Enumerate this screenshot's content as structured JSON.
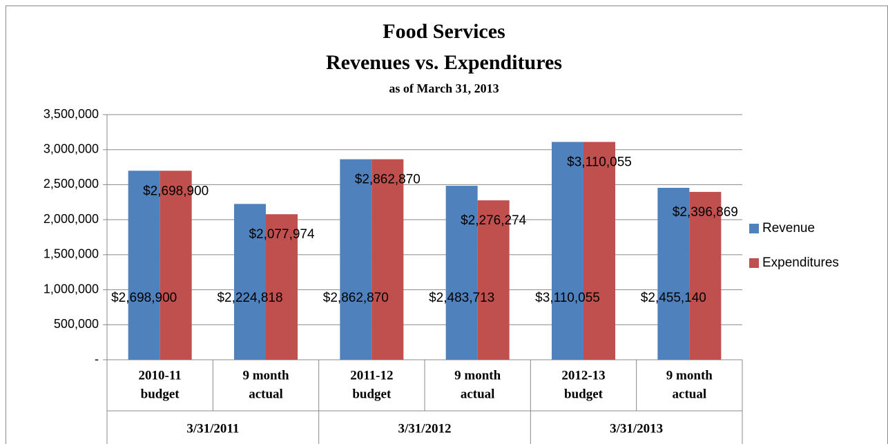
{
  "chart_data": {
    "type": "bar",
    "title": [
      "Food Services",
      "Revenues vs. Expenditures"
    ],
    "subtitle": "as of March 31, 2013",
    "categories": [
      [
        "2010-11",
        "budget"
      ],
      [
        "9 month",
        "actual"
      ],
      [
        "2011-12",
        "budget"
      ],
      [
        "9 month",
        "actual"
      ],
      [
        "2012-13",
        "budget"
      ],
      [
        "9 month",
        "actual"
      ]
    ],
    "groups": [
      "3/31/2011",
      "3/31/2012",
      "3/31/2013"
    ],
    "series": [
      {
        "name": "Revenue",
        "color": "#4f81bd",
        "values": [
          2698900,
          2224818,
          2862870,
          2483713,
          3110055,
          2455140
        ],
        "value_labels": [
          "$2,698,900",
          "$2,224,818",
          "$2,862,870",
          "$2,483,713",
          "$3,110,055",
          "$2,455,140"
        ]
      },
      {
        "name": "Expenditures",
        "color": "#c0504d",
        "values": [
          2698900,
          2077974,
          2862870,
          2276274,
          3110055,
          2396869
        ],
        "value_labels": [
          "$2,698,900",
          "$2,077,974",
          "$2,862,870",
          "$2,276,274",
          "$3,110,055",
          "$2,396,869"
        ]
      }
    ],
    "ylim": [
      0,
      3500000
    ],
    "yticks": [
      {
        "value": 0,
        "label": "-"
      },
      {
        "value": 500000,
        "label": "500,000"
      },
      {
        "value": 1000000,
        "label": "1,000,000"
      },
      {
        "value": 1500000,
        "label": "1,500,000"
      },
      {
        "value": 2000000,
        "label": "2,000,000"
      },
      {
        "value": 2500000,
        "label": "2,500,000"
      },
      {
        "value": 3000000,
        "label": "3,000,000"
      },
      {
        "value": 3500000,
        "label": "3,500,000"
      }
    ],
    "grid": true,
    "legend": "right"
  }
}
